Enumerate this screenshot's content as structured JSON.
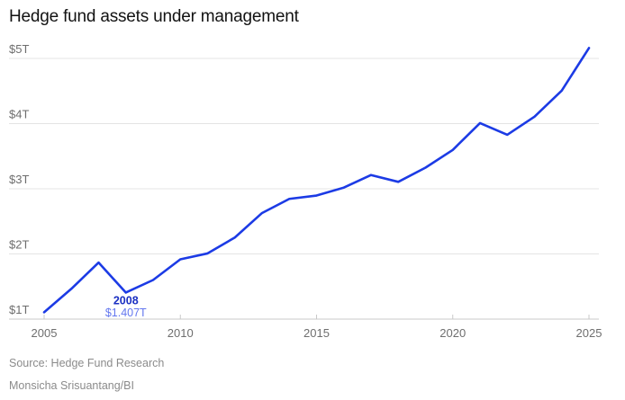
{
  "title": "Hedge fund assets under management",
  "source": "Source: Hedge Fund Research",
  "credit": "Monsicha Srisuantang/BI",
  "colors": {
    "line": "#1c3be5",
    "annotation_year": "#1a2fc2",
    "annotation_value": "#6377ef",
    "grid": "#e4e4e4",
    "axis_line": "#c9c9c9",
    "tick": "#c9c9c9",
    "axis_text": "#6e6e6e",
    "title_text": "#121212",
    "source_text": "#8b8b8b"
  },
  "chart_data": {
    "type": "line",
    "title": "Hedge fund assets under management",
    "x": [
      2005,
      2006,
      2007,
      2008,
      2009,
      2010,
      2011,
      2012,
      2013,
      2014,
      2015,
      2016,
      2017,
      2018,
      2019,
      2020,
      2021,
      2022,
      2023,
      2024,
      2025
    ],
    "values": [
      1.105,
      1.465,
      1.868,
      1.407,
      1.6,
      1.917,
      2.008,
      2.252,
      2.628,
      2.845,
      2.896,
      3.018,
      3.211,
      3.106,
      3.324,
      3.596,
      4.008,
      3.828,
      4.106,
      4.506,
      5.16
    ],
    "ylim": [
      1,
      5.3
    ],
    "yticks": [
      1,
      2,
      3,
      4,
      5
    ],
    "ytick_labels": [
      "$1T",
      "$2T",
      "$3T",
      "$4T",
      "$5T"
    ],
    "xticks": [
      2005,
      2010,
      2015,
      2020,
      2025
    ],
    "xtick_labels": [
      "2005",
      "2010",
      "2015",
      "2020",
      "2025"
    ],
    "grid": "horizontal",
    "legend": "none",
    "annotation": {
      "x": 2008,
      "year_label": "2008",
      "value_label": "$1.407T"
    }
  }
}
